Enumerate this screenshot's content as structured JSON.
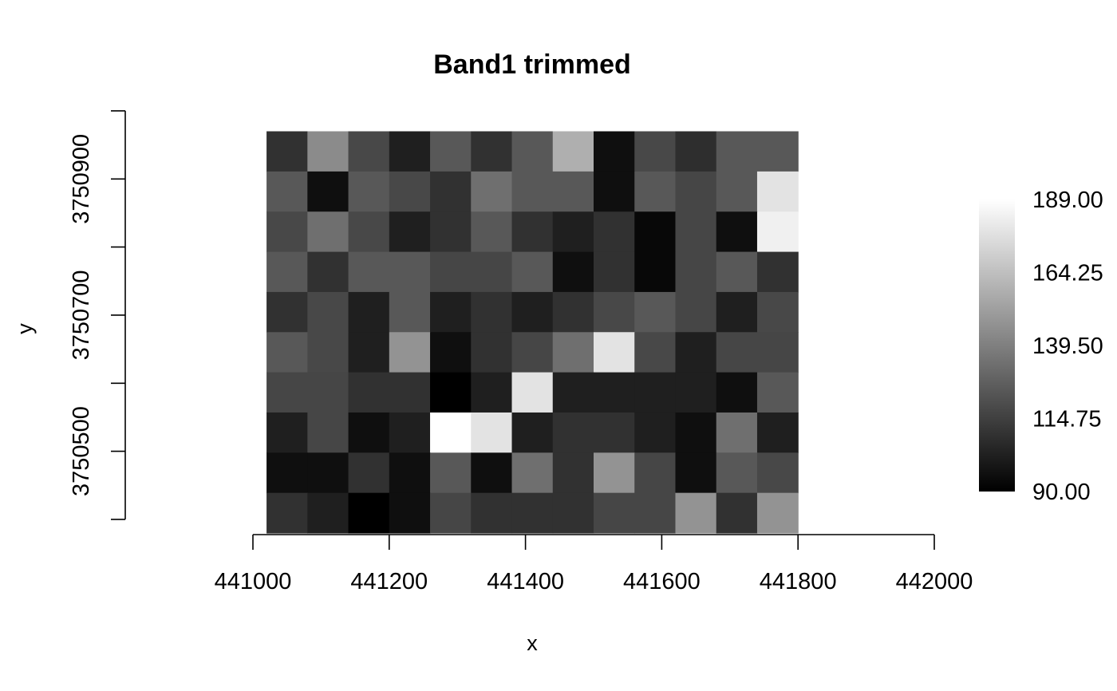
{
  "chart_data": {
    "type": "heatmap",
    "title": "Band1 trimmed",
    "xlabel": "x",
    "ylabel": "y",
    "x_ticks": [
      441000,
      441200,
      441400,
      441600,
      441800,
      442000
    ],
    "x_tick_labels": [
      "441000",
      "441200",
      "441400",
      "441600",
      "441800",
      "442000"
    ],
    "y_ticks": [
      3750500,
      3750700,
      3750900
    ],
    "y_tick_labels": [
      "3750500",
      "3750700",
      "3750900"
    ],
    "y_minor_ticks": [
      3750400,
      3750600,
      3750800,
      3751000
    ],
    "xlim": [
      441000,
      442000
    ],
    "ylim": [
      3750380,
      3750980
    ],
    "grid": false,
    "colormap": "gray",
    "cell_extent": {
      "xmin": 441020,
      "xmax": 441800,
      "ymin": 3750380,
      "ymax": 3750970
    },
    "colorbar": {
      "min": 90.0,
      "max": 189.0,
      "tick_values": [
        90.0,
        114.75,
        139.5,
        164.25,
        189.0
      ],
      "tick_labels": [
        "90.00",
        "114.75",
        "139.50",
        "164.25",
        "189.00"
      ]
    },
    "rows_top_to_bottom": [
      [
        109,
        144,
        118,
        102,
        124,
        109,
        124,
        158,
        96,
        118,
        108,
        124,
        124
      ],
      [
        124,
        96,
        124,
        118,
        109,
        133,
        124,
        124,
        96,
        124,
        117,
        124,
        178
      ],
      [
        118,
        133,
        118,
        102,
        109,
        124,
        109,
        102,
        109,
        93,
        117,
        96,
        183
      ],
      [
        124,
        109,
        124,
        124,
        117,
        117,
        124,
        96,
        109,
        93,
        117,
        124,
        109
      ],
      [
        109,
        118,
        102,
        124,
        102,
        109,
        102,
        109,
        118,
        124,
        117,
        102,
        118
      ],
      [
        124,
        118,
        102,
        147,
        96,
        109,
        117,
        133,
        178,
        118,
        102,
        117,
        117
      ],
      [
        117,
        117,
        109,
        109,
        90,
        102,
        178,
        102,
        102,
        102,
        102,
        96,
        124
      ],
      [
        102,
        117,
        96,
        102,
        189,
        178,
        102,
        109,
        109,
        102,
        96,
        133,
        102
      ],
      [
        96,
        96,
        109,
        96,
        124,
        96,
        133,
        109,
        147,
        117,
        96,
        124,
        118
      ],
      [
        109,
        102,
        90,
        96,
        117,
        109,
        109,
        109,
        117,
        117,
        147,
        109,
        147
      ]
    ]
  }
}
